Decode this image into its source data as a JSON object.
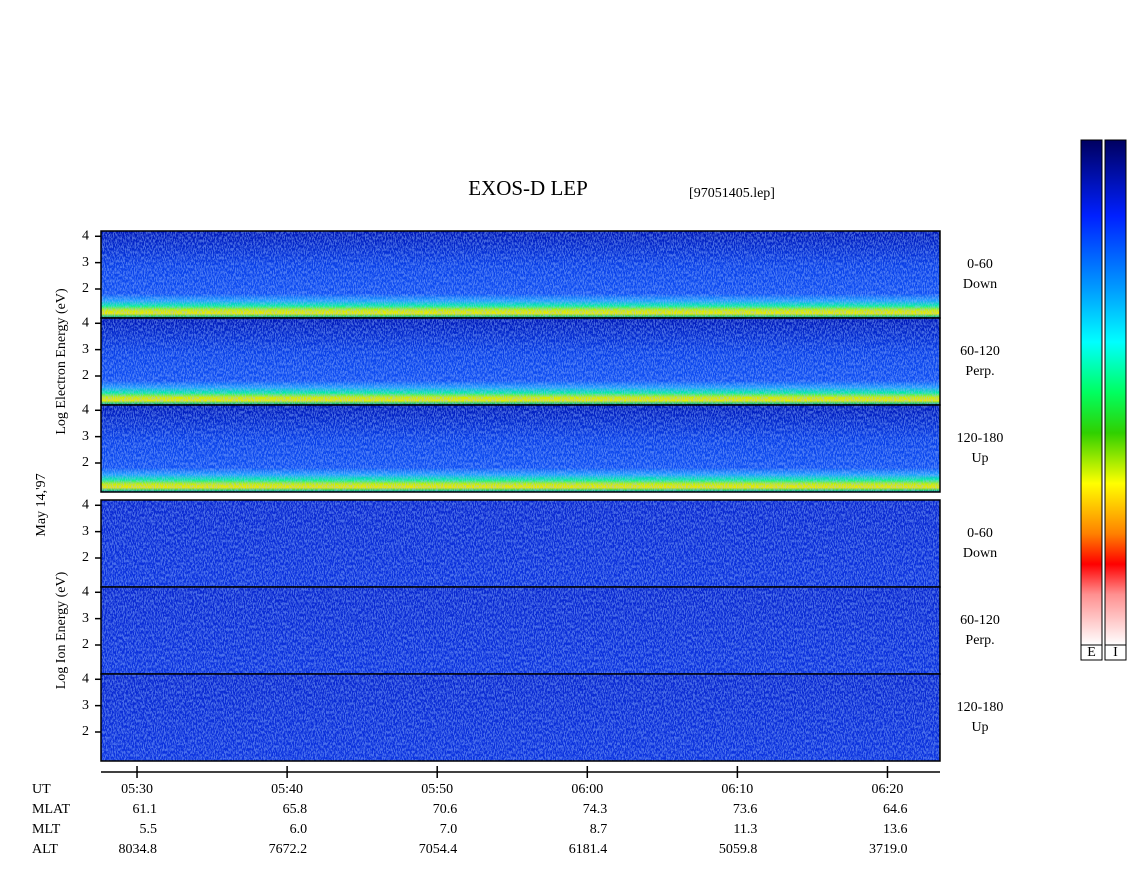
{
  "chart_data": {
    "type": "spectrogram",
    "title": "EXOS-D LEP",
    "subtitle": "[97051405.lep]",
    "date_label": "May 14,'97",
    "ylim": [
      0.9,
      4.2
    ],
    "yticks": [
      2,
      3,
      4
    ],
    "xlim": [
      327.6,
      383.5
    ],
    "xticks": [
      {
        "value": 330,
        "label": "05:30"
      },
      {
        "value": 340,
        "label": "05:40"
      },
      {
        "value": 350,
        "label": "05:50"
      },
      {
        "value": 360,
        "label": "06:00"
      },
      {
        "value": 370,
        "label": "06:10"
      },
      {
        "value": 380,
        "label": "06:20"
      }
    ],
    "groups": [
      {
        "kind": "electron",
        "ylabel": "Log Electron Energy (eV)",
        "panels": [
          {
            "label": [
              "0-60",
              "Down"
            ]
          },
          {
            "label": [
              "60-120",
              "Perp."
            ]
          },
          {
            "label": [
              "120-180",
              "Up"
            ]
          }
        ]
      },
      {
        "kind": "ion",
        "ylabel": "Log Ion Energy (eV)",
        "panels": [
          {
            "label": [
              "0-60",
              "Down"
            ]
          },
          {
            "label": [
              "60-120",
              "Perp."
            ]
          },
          {
            "label": [
              "120-180",
              "Up"
            ]
          }
        ]
      }
    ],
    "ephemeris": {
      "axis_name": "UT",
      "rows": [
        {
          "name": "MLAT",
          "values": [
            "61.1",
            "65.8",
            "70.6",
            "74.3",
            "73.6",
            "64.6"
          ]
        },
        {
          "name": "MLT",
          "values": [
            "5.5",
            "6.0",
            "7.0",
            "8.7",
            "11.3",
            "13.6"
          ]
        },
        {
          "name": "ALT",
          "values": [
            "8034.8",
            "7672.2",
            "7054.4",
            "6181.4",
            "5059.8",
            "3719.0"
          ]
        }
      ]
    },
    "colorbars": [
      "E",
      "I"
    ]
  }
}
